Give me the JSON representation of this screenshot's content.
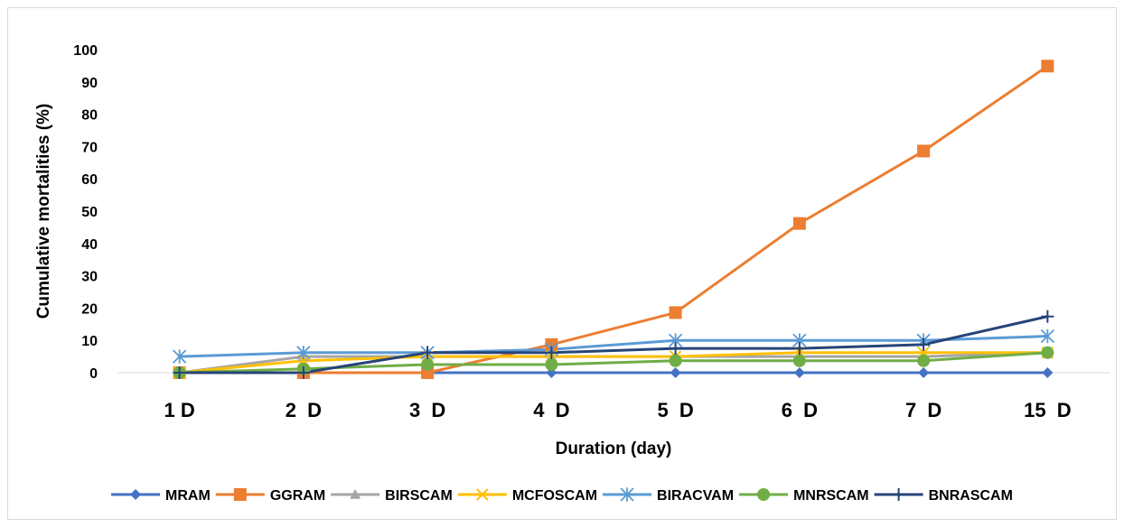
{
  "chart_data": {
    "type": "line",
    "title": "",
    "xlabel": "Duration (day)",
    "ylabel": "Cumulative mortalities (%)",
    "categories": [
      "1 D",
      "2  D",
      "3  D",
      "4  D",
      "5  D",
      "6  D",
      "7  D",
      "15  D"
    ],
    "ylim": [
      0,
      100
    ],
    "yticks": [
      0,
      10,
      20,
      30,
      40,
      50,
      60,
      70,
      80,
      90,
      100
    ],
    "grid": false,
    "legend": "bottom",
    "series": [
      {
        "name": "MRAM",
        "color": "#4472c4",
        "marker": "diamond",
        "values": [
          0,
          0,
          0,
          0,
          0,
          0,
          0,
          0
        ]
      },
      {
        "name": "GGRAM",
        "color": "#ed7d31",
        "marker": "square",
        "values": [
          0,
          0,
          0,
          8.7,
          18.6,
          46.2,
          68.6,
          94.9
        ]
      },
      {
        "name": "BIRSCAM",
        "color": "#a5a5a5",
        "marker": "triangle",
        "values": [
          0,
          5,
          5,
          5,
          5,
          5,
          5,
          6.2
        ]
      },
      {
        "name": "MCFOSCAM",
        "color": "#ffc000",
        "marker": "x",
        "values": [
          0,
          3.7,
          5,
          5,
          5,
          6.2,
          6.2,
          6.2
        ]
      },
      {
        "name": "BIRACVAM",
        "color": "#5b9bd5",
        "marker": "asterisk",
        "values": [
          5,
          6.2,
          6.2,
          7.2,
          10,
          10,
          10,
          11.3
        ]
      },
      {
        "name": "MNRSCAM",
        "color": "#70ad47",
        "marker": "circle",
        "values": [
          0,
          1.2,
          2.5,
          2.5,
          3.7,
          3.7,
          3.7,
          6.2
        ]
      },
      {
        "name": "BNRASCAM",
        "color": "#264478",
        "marker": "plus",
        "values": [
          0,
          0,
          6.2,
          6.2,
          7.5,
          7.5,
          8.7,
          17.4
        ]
      }
    ]
  }
}
